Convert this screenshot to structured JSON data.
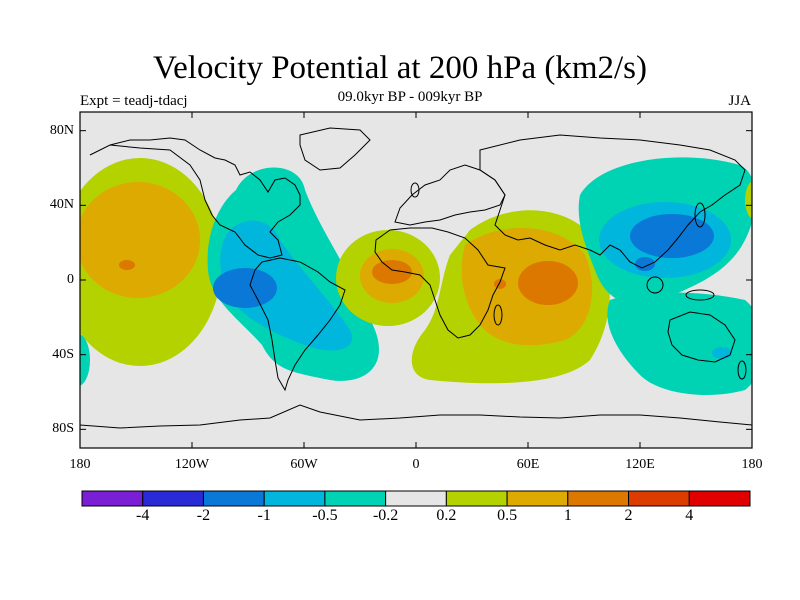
{
  "title": "Velocity Potential at 200 hPa (km2/s)",
  "subtitle": "09.0kyr BP - 009kyr BP",
  "left_label": "Expt = teadj-tdacj",
  "right_label": "JJA",
  "map": {
    "projection": "cylindrical equidistant",
    "lon_range": [
      -180,
      180
    ],
    "lat_range": [
      -90,
      90
    ],
    "background_color": "#e6e6e6",
    "lon_ticks": [
      "180",
      "120W",
      "60W",
      "0",
      "60E",
      "120E",
      "180"
    ],
    "lat_ticks": [
      "80N",
      "40N",
      "0",
      "40S",
      "80S"
    ]
  },
  "colorbar": {
    "colors": [
      "#7a1fd6",
      "#2a2ad6",
      "#0a78d6",
      "#00b6dc",
      "#00d2b4",
      "#e6e6e6",
      "#b4d200",
      "#dcaa00",
      "#dc7800",
      "#dc3c00",
      "#e10000"
    ],
    "labels": [
      "-4",
      "-2",
      "-1",
      "-0.5",
      "-0.2",
      "0.2",
      "0.5",
      "1",
      "2",
      "4"
    ]
  },
  "anomalies": [
    {
      "region": "central Pacific",
      "lon": -150,
      "lat": 12,
      "peak_level": 1
    },
    {
      "region": "South America / tropical Atlantic",
      "lon": -75,
      "lat": -5,
      "peak_level": -1
    },
    {
      "region": "equatorial West Africa",
      "lon": -10,
      "lat": 5,
      "peak_level": 1
    },
    {
      "region": "East Africa / western Indian Ocean",
      "lon": 62,
      "lat": -2,
      "peak_level": 2
    },
    {
      "region": "East Asia / western Pacific",
      "lon": 140,
      "lat": 25,
      "peak_level": -1
    },
    {
      "region": "Australia",
      "lon": 150,
      "lat": -35,
      "peak_level": -0.5
    }
  ]
}
